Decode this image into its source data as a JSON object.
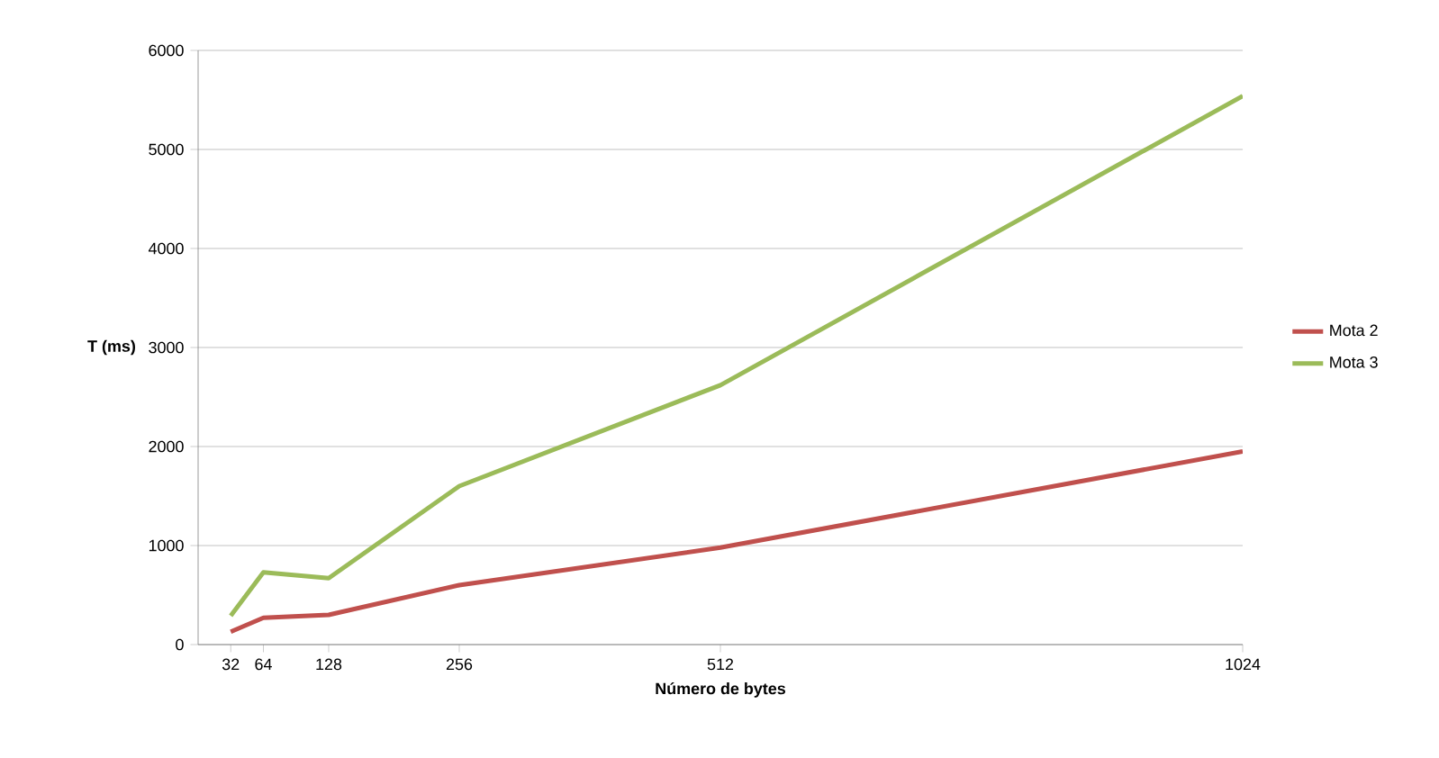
{
  "chart_data": {
    "type": "line",
    "xlabel": "Número de bytes",
    "ylabel": "T (ms)",
    "x": [
      32,
      64,
      128,
      256,
      512,
      1024
    ],
    "series": [
      {
        "name": "Mota 2",
        "color": "#c0504d",
        "values": [
          130,
          270,
          300,
          600,
          980,
          1950
        ]
      },
      {
        "name": "Mota 3",
        "color": "#9bbb59",
        "values": [
          290,
          730,
          670,
          1600,
          2620,
          5540
        ]
      }
    ],
    "xlim": [
      0,
      1024
    ],
    "xticks": [
      32,
      64,
      128,
      256,
      512,
      1024
    ],
    "ylim": [
      0,
      6000
    ],
    "yticks": [
      0,
      1000,
      2000,
      3000,
      4000,
      5000,
      6000
    ],
    "grid": "y",
    "legend": "right",
    "line_style": "solid"
  }
}
